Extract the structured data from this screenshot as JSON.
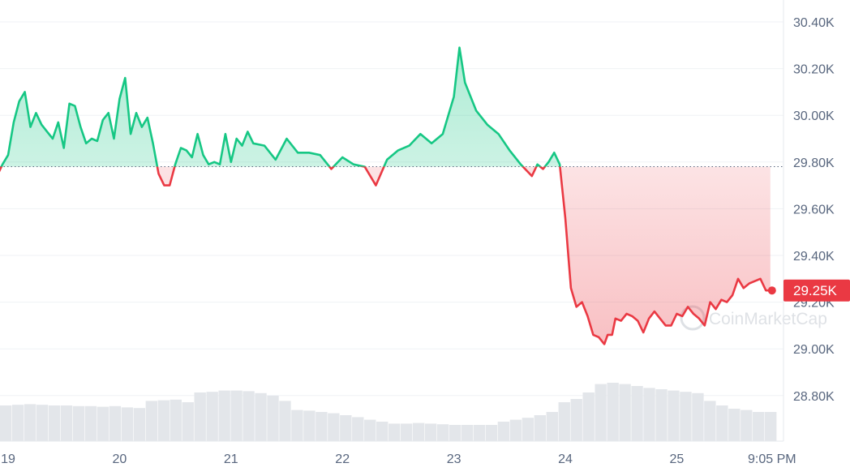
{
  "chart_data": {
    "type": "area",
    "x_ticks": [
      "19",
      "20",
      "21",
      "22",
      "23",
      "24",
      "25",
      "9:05 PM"
    ],
    "y_ticks": [
      "30.40K",
      "30.20K",
      "30.00K",
      "29.80K",
      "29.60K",
      "29.40K",
      "29.20K",
      "29.00K",
      "28.80K"
    ],
    "y_tick_values": [
      30400,
      30200,
      30000,
      29800,
      29600,
      29400,
      29200,
      29000,
      28800
    ],
    "ylim": [
      28650,
      30480
    ],
    "reference_value": 29780,
    "current_label": "29.25K",
    "current_value": 29250,
    "watermark": "CoinMarketCap",
    "colors": {
      "up": "#16c784",
      "down": "#ea3943",
      "grid": "#eff2f5",
      "axis_text": "#58667e",
      "volume": "#e3e6ea"
    },
    "series": [
      {
        "x": [
          18.9,
          18.95,
          19.0,
          19.05,
          19.1,
          19.15,
          19.2,
          19.25,
          19.3,
          19.35,
          19.4,
          19.45,
          19.5,
          19.55,
          19.6,
          19.65,
          19.7,
          19.75,
          19.8,
          19.85,
          19.9,
          19.95,
          20.0,
          20.05,
          20.1,
          20.15,
          20.2,
          20.25,
          20.3,
          20.35,
          20.4,
          20.45,
          20.5,
          20.55,
          20.6,
          20.65,
          20.7,
          20.75,
          20.8,
          20.85,
          20.9,
          20.95,
          21.0,
          21.05,
          21.1,
          21.15,
          21.2,
          21.3,
          21.4,
          21.5,
          21.6,
          21.7,
          21.8,
          21.9,
          22.0,
          22.1,
          22.2,
          22.3,
          22.4,
          22.5,
          22.6,
          22.7,
          22.8,
          22.9,
          23.0,
          23.05,
          23.1,
          23.2,
          23.3,
          23.4,
          23.5,
          23.6,
          23.7,
          23.75,
          23.8,
          23.85,
          23.9,
          23.95,
          24.0,
          24.05,
          24.1,
          24.15,
          24.2,
          24.25,
          24.3,
          24.35,
          24.38,
          24.42,
          24.45,
          24.5,
          24.55,
          24.6,
          24.65,
          24.7,
          24.75,
          24.8,
          24.85,
          24.9,
          24.95,
          25.0,
          25.05,
          25.1,
          25.15,
          25.2,
          25.25,
          25.3,
          25.35,
          25.4,
          25.45,
          25.5,
          25.55,
          25.6,
          25.65,
          25.7,
          25.75,
          25.8,
          25.84
        ],
        "y": [
          29740,
          29790,
          29830,
          29970,
          30060,
          30100,
          29950,
          30010,
          29960,
          29930,
          29900,
          29970,
          29860,
          30050,
          30040,
          29950,
          29880,
          29900,
          29890,
          29980,
          30010,
          29900,
          30070,
          30160,
          29920,
          30010,
          29950,
          29990,
          29880,
          29750,
          29700,
          29700,
          29790,
          29860,
          29850,
          29820,
          29920,
          29830,
          29790,
          29800,
          29790,
          29920,
          29800,
          29900,
          29870,
          29930,
          29880,
          29870,
          29810,
          29900,
          29840,
          29840,
          29830,
          29770,
          29820,
          29790,
          29780,
          29700,
          29810,
          29850,
          29870,
          29920,
          29880,
          29920,
          30080,
          30290,
          30140,
          30020,
          29960,
          29920,
          29850,
          29790,
          29740,
          29790,
          29770,
          29800,
          29840,
          29790,
          29560,
          29260,
          29180,
          29200,
          29140,
          29060,
          29050,
          29020,
          29060,
          29060,
          29130,
          29120,
          29150,
          29140,
          29120,
          29070,
          29130,
          29160,
          29130,
          29100,
          29100,
          29150,
          29140,
          29180,
          29150,
          29130,
          29100,
          29200,
          29170,
          29210,
          29200,
          29230,
          29300,
          29260,
          29280,
          29290,
          29300,
          29250,
          29250
        ]
      }
    ],
    "volume": [
      0.55,
      0.56,
      0.57,
      0.56,
      0.55,
      0.55,
      0.54,
      0.54,
      0.53,
      0.54,
      0.52,
      0.51,
      0.62,
      0.63,
      0.64,
      0.6,
      0.75,
      0.76,
      0.78,
      0.78,
      0.77,
      0.74,
      0.7,
      0.62,
      0.48,
      0.47,
      0.45,
      0.43,
      0.4,
      0.37,
      0.33,
      0.3,
      0.27,
      0.27,
      0.28,
      0.27,
      0.26,
      0.25,
      0.25,
      0.25,
      0.25,
      0.3,
      0.33,
      0.36,
      0.4,
      0.45,
      0.6,
      0.65,
      0.75,
      0.88,
      0.9,
      0.88,
      0.85,
      0.82,
      0.8,
      0.78,
      0.76,
      0.74,
      0.62,
      0.55,
      0.5,
      0.48,
      0.45,
      0.45
    ]
  }
}
